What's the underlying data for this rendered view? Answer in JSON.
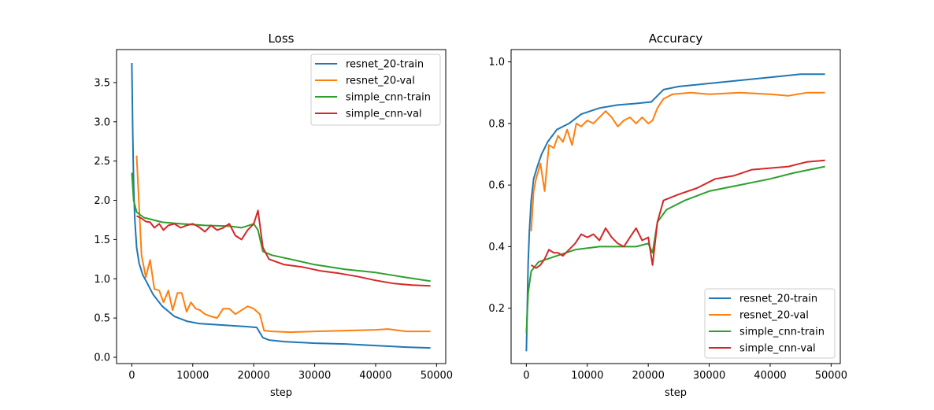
{
  "chart_data": [
    {
      "type": "line",
      "title": "Loss",
      "xlabel": "step",
      "ylabel": "",
      "xlim": [
        -2500,
        51500
      ],
      "ylim": [
        -0.08,
        3.92
      ],
      "xticks": [
        0,
        10000,
        20000,
        30000,
        40000,
        50000
      ],
      "yticks": [
        0.0,
        0.5,
        1.0,
        1.5,
        2.0,
        2.5,
        3.0,
        3.5
      ],
      "xtick_labels": [
        "0",
        "10000",
        "20000",
        "30000",
        "40000",
        "50000"
      ],
      "ytick_labels": [
        "0.0",
        "0.5",
        "1.0",
        "1.5",
        "2.0",
        "2.5",
        "3.0",
        "3.5"
      ],
      "grid": false,
      "legend_position": "upper right",
      "series": [
        {
          "name": "resnet_20-train",
          "color": "#1f77b4",
          "points": [
            [
              0,
              3.75
            ],
            [
              150,
              2.9
            ],
            [
              300,
              2.2
            ],
            [
              500,
              1.75
            ],
            [
              800,
              1.4
            ],
            [
              1200,
              1.2
            ],
            [
              1800,
              1.05
            ],
            [
              2500,
              0.95
            ],
            [
              3500,
              0.8
            ],
            [
              5000,
              0.65
            ],
            [
              7000,
              0.52
            ],
            [
              9000,
              0.46
            ],
            [
              11000,
              0.43
            ],
            [
              13000,
              0.42
            ],
            [
              15000,
              0.41
            ],
            [
              17000,
              0.4
            ],
            [
              19000,
              0.39
            ],
            [
              20500,
              0.38
            ],
            [
              21500,
              0.25
            ],
            [
              22500,
              0.22
            ],
            [
              25000,
              0.2
            ],
            [
              30000,
              0.18
            ],
            [
              35000,
              0.17
            ],
            [
              40000,
              0.15
            ],
            [
              45000,
              0.13
            ],
            [
              49000,
              0.12
            ]
          ]
        },
        {
          "name": "resnet_20-val",
          "color": "#ff7f0e",
          "points": [
            [
              800,
              2.57
            ],
            [
              1600,
              1.3
            ],
            [
              2300,
              1.02
            ],
            [
              3000,
              1.24
            ],
            [
              3700,
              0.87
            ],
            [
              4500,
              0.85
            ],
            [
              5200,
              0.7
            ],
            [
              6000,
              0.85
            ],
            [
              6700,
              0.6
            ],
            [
              7500,
              0.82
            ],
            [
              8200,
              0.82
            ],
            [
              9000,
              0.58
            ],
            [
              9700,
              0.7
            ],
            [
              10500,
              0.62
            ],
            [
              11200,
              0.6
            ],
            [
              12000,
              0.55
            ],
            [
              13000,
              0.52
            ],
            [
              14000,
              0.5
            ],
            [
              15000,
              0.62
            ],
            [
              16000,
              0.62
            ],
            [
              17000,
              0.55
            ],
            [
              18000,
              0.6
            ],
            [
              19000,
              0.65
            ],
            [
              20000,
              0.62
            ],
            [
              21000,
              0.55
            ],
            [
              21700,
              0.34
            ],
            [
              23000,
              0.33
            ],
            [
              26000,
              0.32
            ],
            [
              30000,
              0.33
            ],
            [
              35000,
              0.34
            ],
            [
              40000,
              0.35
            ],
            [
              42000,
              0.36
            ],
            [
              45000,
              0.33
            ],
            [
              49000,
              0.33
            ]
          ]
        },
        {
          "name": "simple_cnn-train",
          "color": "#2ca02c",
          "points": [
            [
              0,
              2.35
            ],
            [
              300,
              2.0
            ],
            [
              800,
              1.85
            ],
            [
              2000,
              1.78
            ],
            [
              5000,
              1.72
            ],
            [
              8000,
              1.7
            ],
            [
              12000,
              1.68
            ],
            [
              16000,
              1.67
            ],
            [
              18000,
              1.65
            ],
            [
              20000,
              1.7
            ],
            [
              20700,
              1.62
            ],
            [
              21500,
              1.35
            ],
            [
              23000,
              1.3
            ],
            [
              26000,
              1.25
            ],
            [
              30000,
              1.18
            ],
            [
              35000,
              1.12
            ],
            [
              40000,
              1.08
            ],
            [
              44000,
              1.03
            ],
            [
              49000,
              0.97
            ]
          ]
        },
        {
          "name": "simple_cnn-val",
          "color": "#d62728",
          "points": [
            [
              800,
              1.8
            ],
            [
              1600,
              1.77
            ],
            [
              2300,
              1.73
            ],
            [
              3000,
              1.72
            ],
            [
              3700,
              1.65
            ],
            [
              4500,
              1.7
            ],
            [
              5200,
              1.62
            ],
            [
              6000,
              1.68
            ],
            [
              7000,
              1.7
            ],
            [
              8000,
              1.65
            ],
            [
              9000,
              1.68
            ],
            [
              10000,
              1.7
            ],
            [
              11000,
              1.66
            ],
            [
              12000,
              1.6
            ],
            [
              13000,
              1.68
            ],
            [
              14000,
              1.62
            ],
            [
              15000,
              1.65
            ],
            [
              16000,
              1.7
            ],
            [
              17000,
              1.55
            ],
            [
              18000,
              1.5
            ],
            [
              19000,
              1.62
            ],
            [
              20000,
              1.7
            ],
            [
              20700,
              1.87
            ],
            [
              21500,
              1.4
            ],
            [
              22500,
              1.25
            ],
            [
              25000,
              1.18
            ],
            [
              28000,
              1.15
            ],
            [
              31000,
              1.1
            ],
            [
              34000,
              1.07
            ],
            [
              37000,
              1.03
            ],
            [
              40000,
              0.98
            ],
            [
              43000,
              0.94
            ],
            [
              46000,
              0.92
            ],
            [
              49000,
              0.91
            ]
          ]
        }
      ]
    },
    {
      "type": "line",
      "title": "Accuracy",
      "xlabel": "step",
      "ylabel": "",
      "xlim": [
        -2500,
        51500
      ],
      "ylim": [
        0.02,
        1.04
      ],
      "xticks": [
        0,
        10000,
        20000,
        30000,
        40000,
        50000
      ],
      "yticks": [
        0.2,
        0.4,
        0.6,
        0.8,
        1.0
      ],
      "xtick_labels": [
        "0",
        "10000",
        "20000",
        "30000",
        "40000",
        "50000"
      ],
      "ytick_labels": [
        "0.2",
        "0.4",
        "0.6",
        "0.8",
        "1.0"
      ],
      "grid": false,
      "legend_position": "lower right",
      "series": [
        {
          "name": "resnet_20-train",
          "color": "#1f77b4",
          "points": [
            [
              0,
              0.06
            ],
            [
              150,
              0.2
            ],
            [
              300,
              0.35
            ],
            [
              500,
              0.45
            ],
            [
              800,
              0.55
            ],
            [
              1200,
              0.62
            ],
            [
              1800,
              0.66
            ],
            [
              2500,
              0.7
            ],
            [
              3500,
              0.74
            ],
            [
              5000,
              0.78
            ],
            [
              7000,
              0.8
            ],
            [
              9000,
              0.83
            ],
            [
              12000,
              0.85
            ],
            [
              15000,
              0.86
            ],
            [
              18000,
              0.865
            ],
            [
              20500,
              0.87
            ],
            [
              21500,
              0.89
            ],
            [
              22500,
              0.91
            ],
            [
              25000,
              0.92
            ],
            [
              30000,
              0.93
            ],
            [
              35000,
              0.94
            ],
            [
              40000,
              0.95
            ],
            [
              45000,
              0.96
            ],
            [
              49000,
              0.96
            ]
          ]
        },
        {
          "name": "resnet_20-val",
          "color": "#ff7f0e",
          "points": [
            [
              800,
              0.45
            ],
            [
              1200,
              0.58
            ],
            [
              1600,
              0.62
            ],
            [
              2300,
              0.67
            ],
            [
              3000,
              0.58
            ],
            [
              3700,
              0.73
            ],
            [
              4500,
              0.72
            ],
            [
              5200,
              0.76
            ],
            [
              6000,
              0.74
            ],
            [
              6700,
              0.78
            ],
            [
              7500,
              0.73
            ],
            [
              8200,
              0.8
            ],
            [
              9000,
              0.79
            ],
            [
              10000,
              0.81
            ],
            [
              11000,
              0.8
            ],
            [
              12000,
              0.82
            ],
            [
              13000,
              0.84
            ],
            [
              14000,
              0.82
            ],
            [
              15000,
              0.79
            ],
            [
              16000,
              0.81
            ],
            [
              17000,
              0.82
            ],
            [
              18000,
              0.8
            ],
            [
              19000,
              0.82
            ],
            [
              20000,
              0.8
            ],
            [
              20700,
              0.81
            ],
            [
              21500,
              0.85
            ],
            [
              22500,
              0.88
            ],
            [
              24000,
              0.895
            ],
            [
              27000,
              0.9
            ],
            [
              30000,
              0.895
            ],
            [
              35000,
              0.9
            ],
            [
              40000,
              0.895
            ],
            [
              43000,
              0.89
            ],
            [
              46000,
              0.9
            ],
            [
              49000,
              0.9
            ]
          ]
        },
        {
          "name": "simple_cnn-train",
          "color": "#2ca02c",
          "points": [
            [
              0,
              0.12
            ],
            [
              300,
              0.25
            ],
            [
              800,
              0.32
            ],
            [
              2000,
              0.35
            ],
            [
              5000,
              0.37
            ],
            [
              8000,
              0.39
            ],
            [
              12000,
              0.4
            ],
            [
              16000,
              0.4
            ],
            [
              18000,
              0.4
            ],
            [
              20000,
              0.41
            ],
            [
              20700,
              0.38
            ],
            [
              21500,
              0.48
            ],
            [
              23000,
              0.52
            ],
            [
              26000,
              0.55
            ],
            [
              30000,
              0.58
            ],
            [
              35000,
              0.6
            ],
            [
              40000,
              0.62
            ],
            [
              44000,
              0.64
            ],
            [
              49000,
              0.66
            ]
          ]
        },
        {
          "name": "simple_cnn-val",
          "color": "#d62728",
          "points": [
            [
              800,
              0.34
            ],
            [
              1600,
              0.33
            ],
            [
              2300,
              0.34
            ],
            [
              3000,
              0.36
            ],
            [
              3700,
              0.39
            ],
            [
              4500,
              0.38
            ],
            [
              5200,
              0.38
            ],
            [
              6000,
              0.37
            ],
            [
              7000,
              0.39
            ],
            [
              8000,
              0.41
            ],
            [
              9000,
              0.44
            ],
            [
              10000,
              0.43
            ],
            [
              11000,
              0.44
            ],
            [
              12000,
              0.42
            ],
            [
              13000,
              0.46
            ],
            [
              14000,
              0.43
            ],
            [
              15000,
              0.41
            ],
            [
              16000,
              0.4
            ],
            [
              17000,
              0.43
            ],
            [
              18000,
              0.46
            ],
            [
              19000,
              0.42
            ],
            [
              20000,
              0.43
            ],
            [
              20700,
              0.34
            ],
            [
              21500,
              0.48
            ],
            [
              22500,
              0.55
            ],
            [
              25000,
              0.57
            ],
            [
              28000,
              0.59
            ],
            [
              31000,
              0.62
            ],
            [
              34000,
              0.63
            ],
            [
              37000,
              0.65
            ],
            [
              40000,
              0.655
            ],
            [
              43000,
              0.66
            ],
            [
              46000,
              0.675
            ],
            [
              49000,
              0.68
            ]
          ]
        }
      ]
    }
  ]
}
